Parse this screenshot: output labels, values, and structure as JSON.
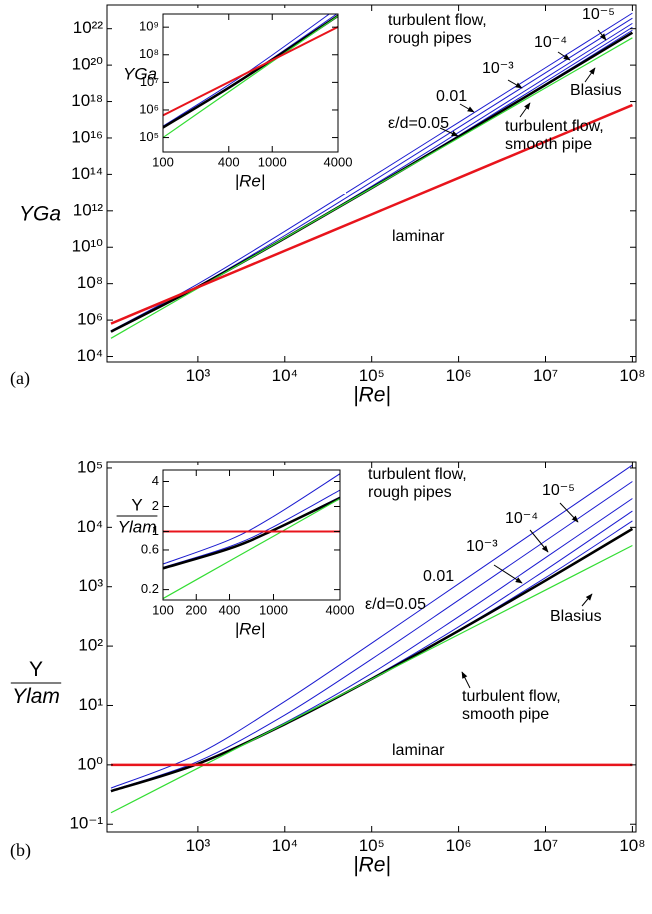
{
  "chart_data": [
    {
      "type": "line",
      "panel_label": "(a)",
      "xlabel": "|Re|",
      "ylabel": "ΥGa",
      "log_x": true,
      "log_y": true,
      "xlim": [
        90,
        110000000
      ],
      "ylim": [
        5000,
        2e+23
      ],
      "xticks": [
        {
          "value": 1000,
          "label": "10³"
        },
        {
          "value": 10000,
          "label": "10⁴"
        },
        {
          "value": 100000,
          "label": "10⁵"
        },
        {
          "value": 1000000,
          "label": "10⁶"
        },
        {
          "value": 10000000,
          "label": "10⁷"
        },
        {
          "value": 100000000,
          "label": "10⁸"
        }
      ],
      "yticks": [
        {
          "value": 10000,
          "label": "10⁴"
        },
        {
          "value": 1000000,
          "label": "10⁶"
        },
        {
          "value": 100000000,
          "label": "10⁸"
        },
        {
          "value": 10000000000,
          "label": "10¹⁰"
        },
        {
          "value": 1000000000000.0,
          "label": "10¹²"
        },
        {
          "value": 100000000000000.0,
          "label": "10¹⁴"
        },
        {
          "value": 1e+16,
          "label": "10¹⁶"
        },
        {
          "value": 1e+18,
          "label": "10¹⁸"
        },
        {
          "value": 1e+20,
          "label": "10²⁰"
        },
        {
          "value": 1e+22,
          "label": "10²²"
        }
      ],
      "annotations": [
        "turbulent flow, rough pipes"
      ],
      "x": [
        100,
        1000,
        10000,
        100000,
        1000000,
        10000000,
        100000000
      ],
      "series": [
        {
          "name": "ε/d=0.05",
          "color": "#1a1ad0",
          "width": 1,
          "values": [
            260000,
            97300000,
            75000000000,
            71900000000000.0,
            7.16e+16,
            7.16e+19,
            7.16e+22
          ]
        },
        {
          "name": "0.01",
          "color": "#1a1ad0",
          "width": 1,
          "values": [
            237000,
            73100000,
            44100000000,
            38700000000000.0,
            3.8e+16,
            3.79e+19,
            3.79e+22
          ]
        },
        {
          "name": "10⁻³",
          "color": "#1a1ad0",
          "width": 1,
          "values": [
            231000,
            67100000,
            32700000000,
            22300000000000.0,
            2e+16,
            1.97e+19,
            1.96e+22
          ]
        },
        {
          "name": "10⁻⁴",
          "color": "#1a1ad0",
          "width": 1,
          "values": [
            231000,
            66400000,
            31200000000,
            18500000000000.0,
            1.35e+16,
            1.22e+19,
            1.2e+22
          ]
        },
        {
          "name": "10⁻⁵",
          "color": "#1a1ad0",
          "width": 1,
          "values": [
            231000,
            66400000,
            31000000000,
            17900000000000.0,
            1.19e+16,
            9.06e+18,
            8.22e+21
          ]
        },
        {
          "name": "turbulent flow, smooth pipe",
          "color": "#000000",
          "width": 2.5,
          "values": [
            231000,
            66400000,
            31000000000,
            17900000000000.0,
            1.16e+16,
            8.15e+18,
            6.03e+21
          ]
        },
        {
          "name": "Blasius",
          "color": "#33dd33",
          "width": 1.2,
          "values": [
            100000,
            56200000,
            31600000000,
            17800000000000.0,
            1e+16,
            5.62e+18,
            3.16e+21
          ]
        },
        {
          "name": "laminar",
          "color": "#e8141c",
          "width": 2.5,
          "values": [
            640000,
            64000000,
            6400000000,
            640000000000,
            64000000000000,
            6400000000000000.0,
            6.4e+17
          ]
        }
      ]
    },
    {
      "type": "line",
      "xlabel": "|Re|",
      "ylabel": "ΥGa",
      "log_x": true,
      "log_y": true,
      "xlim": [
        100,
        4000
      ],
      "ylim": [
        30000,
        3000000000
      ],
      "xticks": [
        100,
        400,
        1000,
        4000
      ],
      "yticks": [
        {
          "value": 100000,
          "label": "10⁵"
        },
        {
          "value": 1000000,
          "label": "10⁶"
        },
        {
          "value": 10000000,
          "label": "10⁷"
        },
        {
          "value": 100000000,
          "label": "10⁸"
        },
        {
          "value": 1000000000,
          "label": "10⁹"
        }
      ],
      "x": [
        100,
        400,
        1000,
        4000
      ],
      "series": [
        {
          "color": "#1a1ad0",
          "width": 1,
          "values": [
            260000,
            8140000,
            97300000,
            5080000000
          ]
        },
        {
          "color": "#1a1ad0",
          "width": 1,
          "values": [
            237000,
            6740000,
            73100000,
            3240000000
          ]
        },
        {
          "color": "#1a1ad0",
          "width": 1,
          "values": [
            231000,
            6420000,
            67100000,
            2670000000
          ]
        },
        {
          "color": "#1a1ad0",
          "width": 1,
          "values": [
            231000,
            6380000,
            66400000,
            2600000000
          ]
        },
        {
          "color": "#1a1ad0",
          "width": 1,
          "values": [
            231000,
            6380000,
            66400000,
            2590000000
          ]
        },
        {
          "color": "#000000",
          "width": 2.5,
          "values": [
            231000,
            6380000,
            66400000,
            2590000000
          ]
        },
        {
          "color": "#33dd33",
          "width": 1.2,
          "values": [
            100000,
            4530000,
            56200000,
            2550000000
          ]
        },
        {
          "color": "#e8141c",
          "width": 2,
          "values": [
            640000,
            10240000,
            64000000,
            1024000000
          ]
        }
      ]
    },
    {
      "type": "line",
      "panel_label": "(b)",
      "xlabel": "|Re|",
      "ylabel": {
        "numerator": "Υ",
        "denominator": "Υlam"
      },
      "log_x": true,
      "log_y": true,
      "xlim": [
        90,
        110000000
      ],
      "ylim": [
        0.074,
        126000
      ],
      "xticks": [
        {
          "value": 1000,
          "label": "10³"
        },
        {
          "value": 10000,
          "label": "10⁴"
        },
        {
          "value": 100000,
          "label": "10⁵"
        },
        {
          "value": 1000000,
          "label": "10⁶"
        },
        {
          "value": 10000000,
          "label": "10⁷"
        },
        {
          "value": 100000000,
          "label": "10⁸"
        }
      ],
      "yticks": [
        {
          "value": 0.1,
          "label": "10⁻¹"
        },
        {
          "value": 1,
          "label": "10⁰"
        },
        {
          "value": 10,
          "label": "10¹"
        },
        {
          "value": 100,
          "label": "10²"
        },
        {
          "value": 1000,
          "label": "10³"
        },
        {
          "value": 10000,
          "label": "10⁴"
        },
        {
          "value": 100000,
          "label": "10⁵"
        }
      ],
      "annotations": [
        "turbulent flow, rough pipes"
      ],
      "x": [
        100,
        1000,
        10000,
        100000,
        1000000,
        10000000,
        100000000
      ],
      "series": [
        {
          "name": "ε/d=0.05",
          "color": "#1a1ad0",
          "width": 1,
          "values": [
            0.406,
            1.52,
            11.7,
            112,
            1120,
            11200,
            112000
          ]
        },
        {
          "name": "0.01",
          "color": "#1a1ad0",
          "width": 1,
          "values": [
            0.37,
            1.14,
            6.89,
            60.5,
            594,
            5920,
            59200
          ]
        },
        {
          "name": "10⁻³",
          "color": "#1a1ad0",
          "width": 1,
          "values": [
            0.361,
            1.05,
            5.11,
            34.8,
            313,
            3080,
            30600
          ]
        },
        {
          "name": "10⁻⁴",
          "color": "#1a1ad0",
          "width": 1,
          "values": [
            0.361,
            1.04,
            4.88,
            28.9,
            211,
            1910,
            18800
          ]
        },
        {
          "name": "10⁻⁵",
          "color": "#1a1ad0",
          "width": 1,
          "values": [
            0.361,
            1.04,
            4.84,
            28,
            186,
            1420,
            12800
          ]
        },
        {
          "name": "turbulent flow, smooth pipe",
          "color": "#000000",
          "width": 2.5,
          "values": [
            0.361,
            1.04,
            4.84,
            28,
            181,
            1270,
            9420
          ]
        },
        {
          "name": "Blasius",
          "color": "#33dd33",
          "width": 1.2,
          "values": [
            0.156,
            0.878,
            4.94,
            27.8,
            156,
            878,
            4940
          ]
        },
        {
          "name": "laminar",
          "color": "#e8141c",
          "width": 2.5,
          "values": [
            1,
            1,
            1,
            1,
            1,
            1,
            1
          ]
        }
      ]
    },
    {
      "type": "line",
      "xlabel": "|Re|",
      "ylabel": {
        "numerator": "Υ",
        "denominator": "Υlam"
      },
      "log_x": true,
      "log_y": true,
      "xlim": [
        100,
        4000
      ],
      "ylim": [
        0.15,
        5.5
      ],
      "xticks": [
        100,
        200,
        400,
        1000,
        4000
      ],
      "yticks": [
        0.2,
        0.6,
        1,
        2,
        4
      ],
      "x": [
        100,
        400,
        1000,
        4000
      ],
      "series": [
        {
          "color": "#1a1ad0",
          "width": 1,
          "values": [
            0.406,
            0.795,
            1.52,
            4.96
          ]
        },
        {
          "color": "#1a1ad0",
          "width": 1,
          "values": [
            0.37,
            0.658,
            1.14,
            3.16
          ]
        },
        {
          "color": "#1a1ad0",
          "width": 1,
          "values": [
            0.361,
            0.627,
            1.05,
            2.61
          ]
        },
        {
          "color": "#1a1ad0",
          "width": 1,
          "values": [
            0.361,
            0.623,
            1.04,
            2.54
          ]
        },
        {
          "color": "#1a1ad0",
          "width": 1,
          "values": [
            0.361,
            0.623,
            1.04,
            2.53
          ]
        },
        {
          "color": "#000000",
          "width": 2.5,
          "values": [
            0.361,
            0.623,
            1.04,
            2.53
          ]
        },
        {
          "color": "#33dd33",
          "width": 1.2,
          "values": [
            0.156,
            0.442,
            0.878,
            2.49
          ]
        },
        {
          "color": "#e8141c",
          "width": 2,
          "values": [
            1,
            1,
            1,
            1
          ]
        }
      ]
    }
  ]
}
